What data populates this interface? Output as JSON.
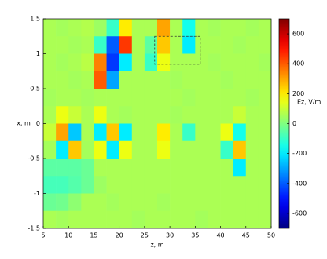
{
  "chart_data": {
    "type": "heatmap",
    "xlabel": "z, m",
    "ylabel": "x, m",
    "colorbar_label": "Ez, V/m",
    "colormap": "jet",
    "clim": [
      -700,
      700
    ],
    "colorbar_ticks": [
      -600,
      -400,
      -200,
      0,
      200,
      400,
      600
    ],
    "xlim": [
      5,
      50
    ],
    "ylim": [
      -1.5,
      1.5
    ],
    "xticks": [
      5,
      10,
      15,
      20,
      25,
      30,
      35,
      40,
      45,
      50
    ],
    "yticks": [
      -1.5,
      -1,
      -0.5,
      0,
      0.5,
      1,
      1.5
    ],
    "highlight_box": {
      "x": [
        27,
        36
      ],
      "y": [
        0.85,
        1.25
      ]
    },
    "x": [
      6.25,
      8.75,
      11.25,
      13.75,
      16.25,
      18.75,
      21.25,
      23.75,
      26.25,
      28.75,
      31.25,
      33.75,
      36.25,
      38.75,
      41.25,
      43.75,
      46.25,
      48.75
    ],
    "y": [
      1.375,
      1.125,
      0.875,
      0.625,
      0.375,
      0.125,
      -0.125,
      -0.375,
      -0.625,
      -0.875,
      -1.125,
      -1.375
    ],
    "values": [
      [
        60,
        50,
        60,
        70,
        40,
        -100,
        200,
        60,
        60,
        300,
        60,
        -150,
        60,
        50,
        60,
        60,
        50,
        60
      ],
      [
        60,
        60,
        50,
        60,
        -100,
        -400,
        450,
        60,
        -50,
        250,
        60,
        -200,
        60,
        60,
        60,
        50,
        60,
        60
      ],
      [
        60,
        50,
        60,
        80,
        350,
        -450,
        -200,
        60,
        -100,
        150,
        60,
        60,
        60,
        50,
        60,
        60,
        60,
        50
      ],
      [
        60,
        60,
        50,
        60,
        400,
        -300,
        60,
        60,
        60,
        60,
        50,
        60,
        60,
        60,
        50,
        60,
        60,
        60
      ],
      [
        50,
        60,
        60,
        50,
        60,
        60,
        60,
        60,
        60,
        60,
        60,
        50,
        60,
        60,
        60,
        60,
        50,
        60
      ],
      [
        60,
        150,
        100,
        60,
        150,
        60,
        50,
        60,
        60,
        60,
        50,
        60,
        60,
        60,
        60,
        100,
        60,
        60
      ],
      [
        100,
        300,
        -250,
        60,
        -200,
        250,
        -200,
        60,
        60,
        200,
        60,
        -100,
        60,
        60,
        150,
        -150,
        60,
        60
      ],
      [
        50,
        -200,
        250,
        50,
        150,
        -200,
        150,
        60,
        60,
        150,
        60,
        60,
        60,
        60,
        -100,
        250,
        60,
        60
      ],
      [
        -50,
        -50,
        -50,
        -30,
        60,
        60,
        60,
        60,
        60,
        60,
        60,
        60,
        60,
        60,
        60,
        -200,
        60,
        60
      ],
      [
        -80,
        -80,
        -60,
        -30,
        40,
        60,
        60,
        60,
        60,
        60,
        60,
        60,
        60,
        60,
        60,
        60,
        60,
        60
      ],
      [
        -30,
        -20,
        20,
        60,
        60,
        50,
        60,
        60,
        60,
        50,
        60,
        60,
        60,
        60,
        60,
        60,
        60,
        60
      ],
      [
        60,
        50,
        60,
        60,
        60,
        60,
        60,
        50,
        60,
        60,
        60,
        60,
        50,
        60,
        60,
        60,
        60,
        60
      ]
    ]
  }
}
